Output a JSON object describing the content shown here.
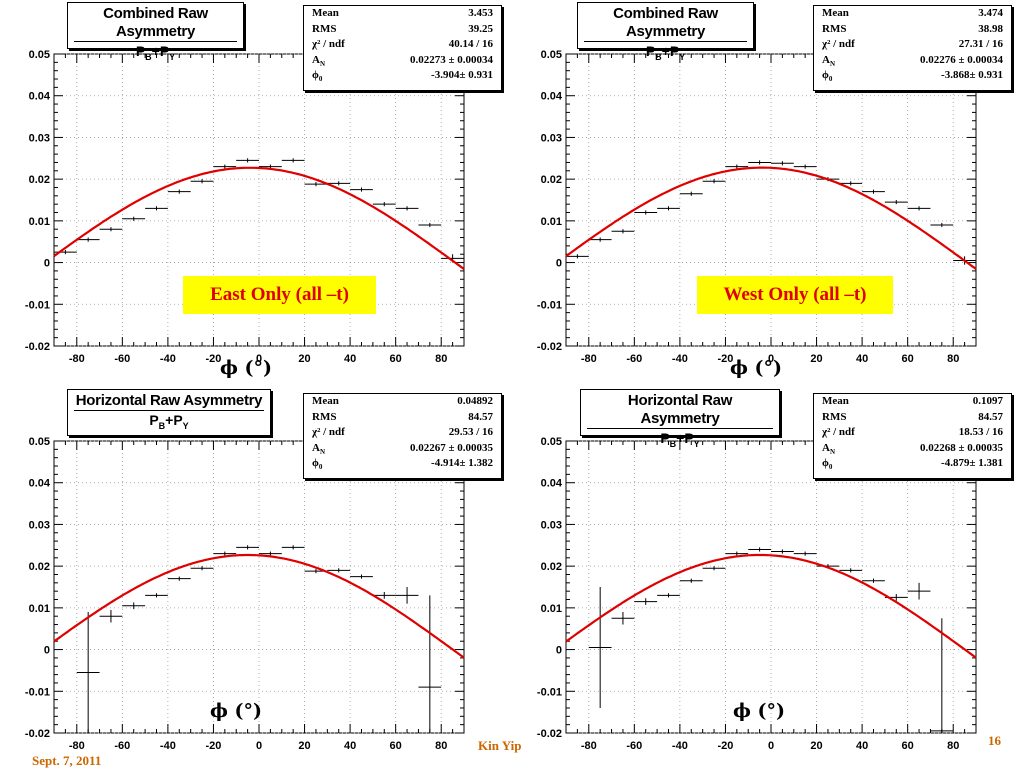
{
  "footer": {
    "author": "Kin Yip",
    "date": "Sept. 7, 2011",
    "page": "16"
  },
  "colors": {
    "fit": "#e00000",
    "label_bg": "#ffff00",
    "label_text": "#e00000",
    "footer_text": "#cc6600",
    "grid": "#999999"
  },
  "chart_data": [
    {
      "type": "scatter",
      "title": "Combined Raw Asymmetry",
      "subtitle_base": "P",
      "subtitle_sub1": "B",
      "subtitle_plus": "+P",
      "subtitle_sub2": "Y",
      "region_label": "East Only (all –t)",
      "xlabel": "ϕ (°)",
      "xlim": [
        -90,
        90
      ],
      "ylim": [
        -0.02,
        0.05
      ],
      "xticks": [
        -80,
        -60,
        -40,
        -20,
        0,
        20,
        40,
        60,
        80
      ],
      "yticks": [
        -0.02,
        -0.01,
        0,
        0.01,
        0.02,
        0.03,
        0.04,
        0.05
      ],
      "ytick_labels": [
        "-0.02",
        "-0.01",
        "0",
        "0.01",
        "0.02",
        "0.03",
        "0.04",
        "0.05"
      ],
      "grid": true,
      "stats": [
        {
          "label": "Mean",
          "value": "3.453"
        },
        {
          "label": "RMS",
          "value": "39.25"
        },
        {
          "label": "χ² / ndf",
          "value": "40.14 / 16"
        },
        {
          "label": "A",
          "sub": "N",
          "value": "0.02273 ± 0.00034"
        },
        {
          "label": "ϕ",
          "sub": "0",
          "value": "-3.904± 0.931"
        }
      ],
      "fit": {
        "amplitude": 0.02273,
        "phi0": -3.904
      },
      "points": [
        {
          "x": -85,
          "y": 0.0025,
          "err": 0.0005
        },
        {
          "x": -75,
          "y": 0.0055,
          "err": 0.0005
        },
        {
          "x": -65,
          "y": 0.008,
          "err": 0.0005
        },
        {
          "x": -55,
          "y": 0.0105,
          "err": 0.0005
        },
        {
          "x": -45,
          "y": 0.013,
          "err": 0.0005
        },
        {
          "x": -35,
          "y": 0.017,
          "err": 0.0005
        },
        {
          "x": -25,
          "y": 0.0195,
          "err": 0.0005
        },
        {
          "x": -15,
          "y": 0.023,
          "err": 0.0005
        },
        {
          "x": -5,
          "y": 0.0245,
          "err": 0.0005
        },
        {
          "x": 5,
          "y": 0.023,
          "err": 0.0005
        },
        {
          "x": 15,
          "y": 0.0245,
          "err": 0.0005
        },
        {
          "x": 25,
          "y": 0.0188,
          "err": 0.0005
        },
        {
          "x": 35,
          "y": 0.019,
          "err": 0.0005
        },
        {
          "x": 45,
          "y": 0.0175,
          "err": 0.0005
        },
        {
          "x": 55,
          "y": 0.014,
          "err": 0.0005
        },
        {
          "x": 65,
          "y": 0.013,
          "err": 0.0005
        },
        {
          "x": 75,
          "y": 0.009,
          "err": 0.0005
        },
        {
          "x": 85,
          "y": 0.001,
          "err": 0.001
        }
      ]
    },
    {
      "type": "scatter",
      "title": "Combined Raw Asymmetry",
      "subtitle_base": "P",
      "subtitle_sub1": "B",
      "subtitle_plus": "+P",
      "subtitle_sub2": "Y",
      "region_label": "West Only (all –t)",
      "xlabel": "ϕ (°)",
      "xlim": [
        -90,
        90
      ],
      "ylim": [
        -0.02,
        0.05
      ],
      "xticks": [
        -80,
        -60,
        -40,
        -20,
        0,
        20,
        40,
        60,
        80
      ],
      "yticks": [
        -0.02,
        -0.01,
        0,
        0.01,
        0.02,
        0.03,
        0.04,
        0.05
      ],
      "ytick_labels": [
        "-0.02",
        "-0.01",
        "0",
        "0.01",
        "0.02",
        "0.03",
        "0.04",
        "0.05"
      ],
      "grid": true,
      "stats": [
        {
          "label": "Mean",
          "value": "3.474"
        },
        {
          "label": "RMS",
          "value": "38.98"
        },
        {
          "label": "χ² / ndf",
          "value": "27.31 / 16"
        },
        {
          "label": "A",
          "sub": "N",
          "value": "0.02276 ± 0.00034"
        },
        {
          "label": "ϕ",
          "sub": "0",
          "value": "-3.868± 0.931"
        }
      ],
      "fit": {
        "amplitude": 0.02276,
        "phi0": -3.868
      },
      "points": [
        {
          "x": -85,
          "y": 0.0015,
          "err": 0.0005
        },
        {
          "x": -75,
          "y": 0.0055,
          "err": 0.0005
        },
        {
          "x": -65,
          "y": 0.0075,
          "err": 0.0005
        },
        {
          "x": -55,
          "y": 0.012,
          "err": 0.0005
        },
        {
          "x": -45,
          "y": 0.013,
          "err": 0.0005
        },
        {
          "x": -35,
          "y": 0.0165,
          "err": 0.0005
        },
        {
          "x": -25,
          "y": 0.0195,
          "err": 0.0005
        },
        {
          "x": -15,
          "y": 0.023,
          "err": 0.0005
        },
        {
          "x": -5,
          "y": 0.024,
          "err": 0.0005
        },
        {
          "x": 5,
          "y": 0.0238,
          "err": 0.0005
        },
        {
          "x": 15,
          "y": 0.023,
          "err": 0.0005
        },
        {
          "x": 25,
          "y": 0.02,
          "err": 0.0005
        },
        {
          "x": 35,
          "y": 0.019,
          "err": 0.0005
        },
        {
          "x": 45,
          "y": 0.017,
          "err": 0.0005
        },
        {
          "x": 55,
          "y": 0.0145,
          "err": 0.0005
        },
        {
          "x": 65,
          "y": 0.013,
          "err": 0.0005
        },
        {
          "x": 75,
          "y": 0.009,
          "err": 0.0005
        },
        {
          "x": 85,
          "y": 0.0005,
          "err": 0.001
        }
      ]
    },
    {
      "type": "scatter",
      "title": "Horizontal Raw Asymmetry",
      "subtitle_base": "P",
      "subtitle_sub1": "B",
      "subtitle_plus": "+P",
      "subtitle_sub2": "Y",
      "region_label": "",
      "xlabel": "ϕ (°)",
      "xlim": [
        -90,
        90
      ],
      "ylim": [
        -0.02,
        0.05
      ],
      "xticks": [
        -80,
        -60,
        -40,
        -20,
        0,
        20,
        40,
        60,
        80
      ],
      "yticks": [
        -0.02,
        -0.01,
        0,
        0.01,
        0.02,
        0.03,
        0.04,
        0.05
      ],
      "ytick_labels": [
        "-0.02",
        "-0.01",
        "0",
        "0.01",
        "0.02",
        "0.03",
        "0.04",
        "0.05"
      ],
      "grid": true,
      "stats": [
        {
          "label": "Mean",
          "value": "0.04892"
        },
        {
          "label": "RMS",
          "value": "84.57"
        },
        {
          "label": "χ² / ndf",
          "value": "29.53 / 16"
        },
        {
          "label": "A",
          "sub": "N",
          "value": "0.02267 ± 0.00035"
        },
        {
          "label": "ϕ",
          "sub": "0",
          "value": "-4.914± 1.382"
        }
      ],
      "fit": {
        "amplitude": 0.02267,
        "phi0": -4.914
      },
      "points": [
        {
          "x": -75,
          "y": -0.0055,
          "err": 0.0145
        },
        {
          "x": -65,
          "y": 0.008,
          "err": 0.0015
        },
        {
          "x": -55,
          "y": 0.0105,
          "err": 0.0008
        },
        {
          "x": -45,
          "y": 0.013,
          "err": 0.0005
        },
        {
          "x": -35,
          "y": 0.017,
          "err": 0.0005
        },
        {
          "x": -25,
          "y": 0.0195,
          "err": 0.0005
        },
        {
          "x": -15,
          "y": 0.023,
          "err": 0.0005
        },
        {
          "x": -5,
          "y": 0.0245,
          "err": 0.0005
        },
        {
          "x": 5,
          "y": 0.023,
          "err": 0.0005
        },
        {
          "x": 15,
          "y": 0.0245,
          "err": 0.0005
        },
        {
          "x": 25,
          "y": 0.0188,
          "err": 0.0005
        },
        {
          "x": 35,
          "y": 0.019,
          "err": 0.0005
        },
        {
          "x": 45,
          "y": 0.0175,
          "err": 0.0005
        },
        {
          "x": 55,
          "y": 0.013,
          "err": 0.0008
        },
        {
          "x": 65,
          "y": 0.013,
          "err": 0.002
        },
        {
          "x": 75,
          "y": -0.009,
          "err": 0.022
        }
      ]
    },
    {
      "type": "scatter",
      "title": "Horizontal Raw Asymmetry",
      "subtitle_base": "P",
      "subtitle_sub1": "B",
      "subtitle_plus": "+P",
      "subtitle_sub2": "Y",
      "region_label": "",
      "xlabel": "ϕ (°)",
      "xlim": [
        -90,
        90
      ],
      "ylim": [
        -0.02,
        0.05
      ],
      "xticks": [
        -80,
        -60,
        -40,
        -20,
        0,
        20,
        40,
        60,
        80
      ],
      "yticks": [
        -0.02,
        -0.01,
        0,
        0.01,
        0.02,
        0.03,
        0.04,
        0.05
      ],
      "ytick_labels": [
        "-0.02",
        "-0.01",
        "0",
        "0.01",
        "0.02",
        "0.03",
        "0.04",
        "0.05"
      ],
      "grid": true,
      "stats": [
        {
          "label": "Mean",
          "value": "0.1097"
        },
        {
          "label": "RMS",
          "value": "84.57"
        },
        {
          "label": "χ² / ndf",
          "value": "18.53 / 16"
        },
        {
          "label": "A",
          "sub": "N",
          "value": "0.02268 ± 0.00035"
        },
        {
          "label": "ϕ",
          "sub": "0",
          "value": "-4.879± 1.381"
        }
      ],
      "fit": {
        "amplitude": 0.02268,
        "phi0": -4.879
      },
      "points": [
        {
          "x": -75,
          "y": 0.0005,
          "err": 0.0145
        },
        {
          "x": -65,
          "y": 0.0075,
          "err": 0.0015
        },
        {
          "x": -55,
          "y": 0.0115,
          "err": 0.0008
        },
        {
          "x": -45,
          "y": 0.013,
          "err": 0.0005
        },
        {
          "x": -35,
          "y": 0.0165,
          "err": 0.0005
        },
        {
          "x": -25,
          "y": 0.0195,
          "err": 0.0005
        },
        {
          "x": -15,
          "y": 0.023,
          "err": 0.0005
        },
        {
          "x": -5,
          "y": 0.024,
          "err": 0.0005
        },
        {
          "x": 5,
          "y": 0.0235,
          "err": 0.0005
        },
        {
          "x": 15,
          "y": 0.023,
          "err": 0.0005
        },
        {
          "x": 25,
          "y": 0.02,
          "err": 0.0005
        },
        {
          "x": 35,
          "y": 0.019,
          "err": 0.0005
        },
        {
          "x": 45,
          "y": 0.0165,
          "err": 0.0005
        },
        {
          "x": 55,
          "y": 0.0125,
          "err": 0.0008
        },
        {
          "x": 65,
          "y": 0.014,
          "err": 0.002
        },
        {
          "x": 75,
          "y": -0.0195,
          "err": 0.027
        }
      ]
    }
  ]
}
